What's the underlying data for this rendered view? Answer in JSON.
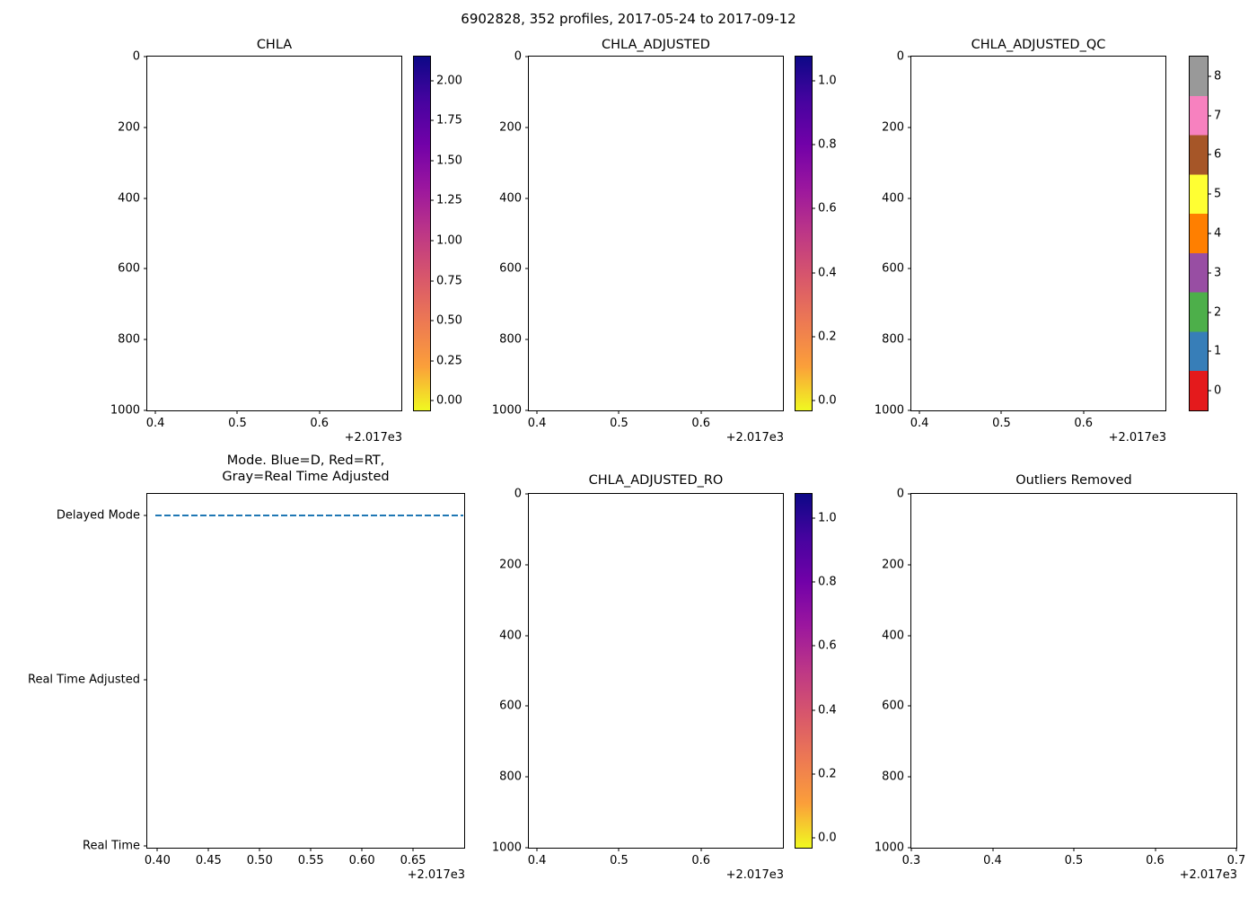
{
  "figure": {
    "title": "6902828, 352 profiles, 2017-05-24 to 2017-09-12"
  },
  "colors": {
    "background": "#ffffff",
    "axis": "#000000",
    "text": "#000000",
    "mode_line_blue": "#1f77b4",
    "plasma_r_stops": [
      "#0d0887",
      "#46039f",
      "#7201a8",
      "#9c179e",
      "#bd3786",
      "#d8576b",
      "#ed7953",
      "#fb9f3a",
      "#f0f921"
    ]
  },
  "chart_data": [
    {
      "type": "heatmap",
      "title": "CHLA",
      "xlim": [
        2017.39,
        2017.7
      ],
      "x_ticks": [
        2017.4,
        2017.5,
        2017.6
      ],
      "x_tick_labels": [
        "0.4",
        "0.5",
        "0.6"
      ],
      "x_offset_label": "+2.017e3",
      "ylim": [
        0,
        1000
      ],
      "y_inverted": true,
      "y_ticks": [
        0,
        200,
        400,
        600,
        800,
        1000
      ],
      "y_tick_labels": [
        "0",
        "200",
        "400",
        "600",
        "800",
        "1000"
      ],
      "values": [],
      "colorbar": {
        "type": "continuous",
        "cmap": "plasma_r",
        "vmin": -0.06,
        "vmax": 2.15,
        "ticks": [
          2.0,
          1.75,
          1.5,
          1.25,
          1.0,
          0.75,
          0.5,
          0.25,
          0.0
        ],
        "tick_labels": [
          "2.00",
          "1.75",
          "1.50",
          "1.25",
          "1.00",
          "0.75",
          "0.50",
          "0.25",
          "0.00"
        ]
      }
    },
    {
      "type": "heatmap",
      "title": "CHLA_ADJUSTED",
      "xlim": [
        2017.39,
        2017.7
      ],
      "x_ticks": [
        2017.4,
        2017.5,
        2017.6
      ],
      "x_tick_labels": [
        "0.4",
        "0.5",
        "0.6"
      ],
      "x_offset_label": "+2.017e3",
      "ylim": [
        0,
        1000
      ],
      "y_inverted": true,
      "y_ticks": [
        0,
        200,
        400,
        600,
        800,
        1000
      ],
      "y_tick_labels": [
        "0",
        "200",
        "400",
        "600",
        "800",
        "1000"
      ],
      "values": [],
      "colorbar": {
        "type": "continuous",
        "cmap": "plasma_r",
        "vmin": -0.03,
        "vmax": 1.075,
        "ticks": [
          1.0,
          0.8,
          0.6,
          0.4,
          0.2,
          0.0
        ],
        "tick_labels": [
          "1.0",
          "0.8",
          "0.6",
          "0.4",
          "0.2",
          "0.0"
        ]
      }
    },
    {
      "type": "heatmap",
      "title": "CHLA_ADJUSTED_QC",
      "xlim": [
        2017.39,
        2017.7
      ],
      "x_ticks": [
        2017.4,
        2017.5,
        2017.6
      ],
      "x_tick_labels": [
        "0.4",
        "0.5",
        "0.6"
      ],
      "x_offset_label": "+2.017e3",
      "ylim": [
        0,
        1000
      ],
      "y_inverted": true,
      "y_ticks": [
        0,
        200,
        400,
        600,
        800,
        1000
      ],
      "y_tick_labels": [
        "0",
        "200",
        "400",
        "600",
        "800",
        "1000"
      ],
      "values": [],
      "colorbar": {
        "type": "discrete",
        "boundaries": [
          0,
          1,
          2,
          3,
          4,
          5,
          6,
          7,
          8,
          9
        ],
        "colors": [
          "#e41a1c",
          "#377eb8",
          "#4daf4a",
          "#984ea3",
          "#ff7f00",
          "#ffff33",
          "#a65628",
          "#f781bf",
          "#999999"
        ],
        "ticks": [
          8,
          7,
          6,
          5,
          4,
          3,
          2,
          1,
          0
        ],
        "tick_labels": [
          "8",
          "7",
          "6",
          "5",
          "4",
          "3",
          "2",
          "1",
          "0"
        ]
      }
    },
    {
      "type": "line",
      "title": "Mode. Blue=D, Red=RT,\nGray=Real Time Adjusted",
      "xlim": [
        2017.39,
        2017.7
      ],
      "x_ticks": [
        2017.4,
        2017.45,
        2017.5,
        2017.55,
        2017.6,
        2017.65
      ],
      "x_tick_labels": [
        "0.40",
        "0.45",
        "0.50",
        "0.55",
        "0.60",
        "0.65"
      ],
      "x_offset_label": "+2.017e3",
      "y_categories": [
        "Delayed Mode",
        "Real Time Adjusted",
        "Real Time"
      ],
      "y_category_pos": [
        0.06,
        0.525,
        0.995
      ],
      "series": [
        {
          "name": "mode",
          "value": "Delayed Mode",
          "color": "#1f77b4",
          "style": "dashed",
          "x_start": 2017.398,
          "x_end": 2017.699
        }
      ]
    },
    {
      "type": "heatmap",
      "title": "CHLA_ADJUSTED_RO",
      "xlim": [
        2017.39,
        2017.7
      ],
      "x_ticks": [
        2017.4,
        2017.5,
        2017.6
      ],
      "x_tick_labels": [
        "0.4",
        "0.5",
        "0.6"
      ],
      "x_offset_label": "+2.017e3",
      "ylim": [
        0,
        1000
      ],
      "y_inverted": true,
      "y_ticks": [
        0,
        200,
        400,
        600,
        800,
        1000
      ],
      "y_tick_labels": [
        "0",
        "200",
        "400",
        "600",
        "800",
        "1000"
      ],
      "values": [],
      "colorbar": {
        "type": "continuous",
        "cmap": "plasma_r",
        "vmin": -0.03,
        "vmax": 1.075,
        "ticks": [
          1.0,
          0.8,
          0.6,
          0.4,
          0.2,
          0.0
        ],
        "tick_labels": [
          "1.0",
          "0.8",
          "0.6",
          "0.4",
          "0.2",
          "0.0"
        ]
      }
    },
    {
      "type": "heatmap",
      "title": "Outliers Removed",
      "xlim": [
        2017.3,
        2017.7
      ],
      "x_ticks": [
        2017.3,
        2017.4,
        2017.5,
        2017.6,
        2017.7
      ],
      "x_tick_labels": [
        "0.3",
        "0.4",
        "0.5",
        "0.6",
        "0.7"
      ],
      "x_offset_label": "+2.017e3",
      "ylim": [
        0,
        1000
      ],
      "y_inverted": true,
      "y_ticks": [
        0,
        200,
        400,
        600,
        800,
        1000
      ],
      "y_tick_labels": [
        "0",
        "200",
        "400",
        "600",
        "800",
        "1000"
      ],
      "values": []
    }
  ]
}
